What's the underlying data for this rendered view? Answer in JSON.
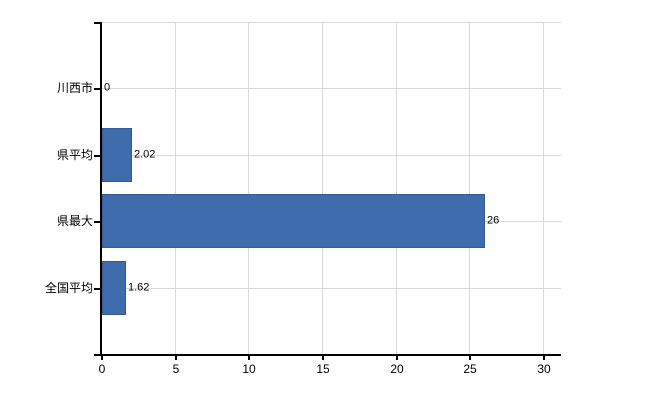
{
  "chart_data": {
    "type": "bar",
    "orientation": "horizontal",
    "title": "",
    "categories": [
      "川西市",
      "県平均",
      "県最大",
      "全国平均"
    ],
    "values": [
      0,
      2.02,
      26,
      1.62
    ],
    "value_labels": [
      "0",
      "2.02",
      "26",
      "1.62"
    ],
    "x_ticks": [
      0,
      5,
      10,
      15,
      20,
      25,
      30
    ],
    "x_tick_labels": [
      "0",
      "5",
      "10",
      "15",
      "20",
      "25",
      "30"
    ],
    "xlim": [
      0,
      31.2
    ],
    "grid": true,
    "legend": false,
    "empty_top_slot": true,
    "colors": {
      "bar": "#3e6cad",
      "bar_border": "#345992",
      "grid": "#d9d9d9",
      "axis": "#000000",
      "text": "#000000",
      "background": "#ffffff"
    }
  }
}
